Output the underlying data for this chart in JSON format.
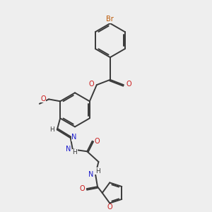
{
  "bg_color": "#eeeeee",
  "bond_color": "#3a3a3a",
  "bond_width": 1.4,
  "atom_colors": {
    "C": "#3a3a3a",
    "H": "#3a3a3a",
    "N": "#1a1acc",
    "O": "#cc1a1a",
    "Br": "#bb5500"
  },
  "font_size": 7.0
}
